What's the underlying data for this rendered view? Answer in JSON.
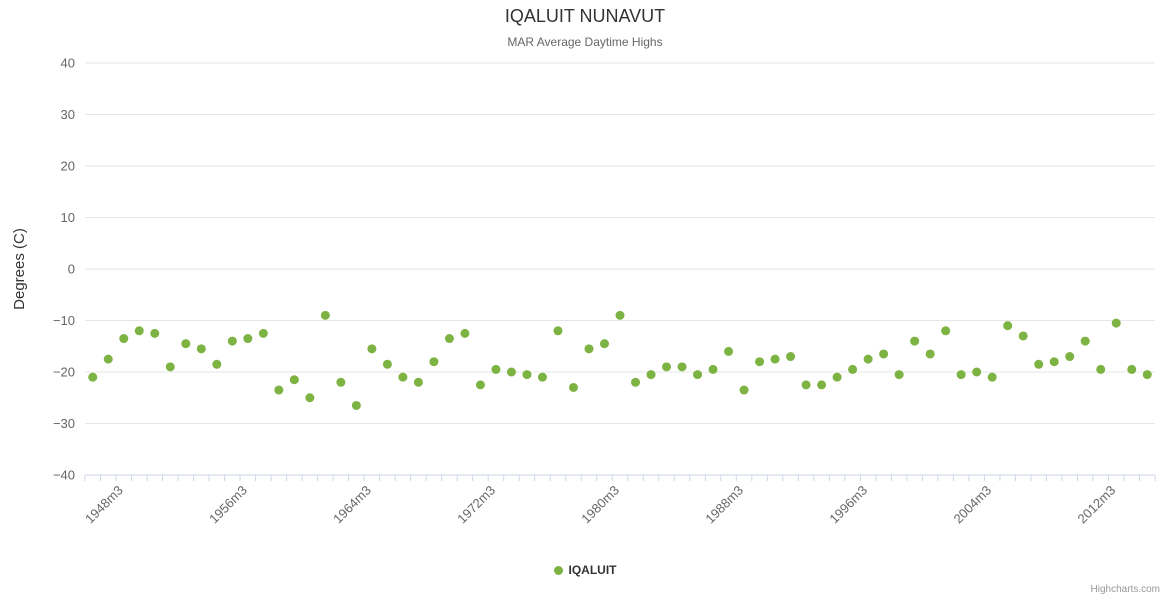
{
  "title": "IQALUIT NUNAVUT",
  "subtitle": "MAR Average Daytime Highs",
  "y_axis_title": "Degrees (C)",
  "legend": {
    "label": "IQALUIT"
  },
  "credits": "Highcharts.com",
  "colors": {
    "point": "#7cb342",
    "grid": "#e6e6e6",
    "axis_line": "#ccd6eb",
    "tick": "#ccd6eb",
    "tick_label": "#666666",
    "title": "#333333"
  },
  "chart_data": {
    "type": "scatter",
    "title": "IQALUIT NUNAVUT",
    "subtitle": "MAR Average Daytime Highs",
    "ylabel": "Degrees (C)",
    "ylim": [
      -40,
      40
    ],
    "y_ticks": [
      40,
      30,
      20,
      10,
      0,
      -10,
      -20,
      -30,
      -40
    ],
    "grid": true,
    "legend_position": "bottom-center",
    "x_tick_labels": [
      "1948m3",
      "1956m3",
      "1964m3",
      "1972m3",
      "1980m3",
      "1988m3",
      "1996m3",
      "2004m3",
      "2012m3"
    ],
    "x_tick_interval": 8,
    "series": [
      {
        "name": "IQALUIT",
        "color": "#7cb342",
        "start_year": 1946,
        "month_suffix": "m3",
        "values": [
          -21,
          -17.5,
          -13.5,
          -12,
          -12.5,
          -19,
          -14.5,
          -15.5,
          -18.5,
          -14,
          -13.5,
          -12.5,
          -23.5,
          -21.5,
          -25,
          -9,
          -22,
          -26.5,
          -15.5,
          -18.5,
          -21,
          -22,
          -18,
          -13.5,
          -12.5,
          -22.5,
          -19.5,
          -20,
          -20.5,
          -21,
          -12,
          -23,
          -15.5,
          -14.5,
          -9,
          -22,
          -20.5,
          -19,
          -19,
          -20.5,
          -19.5,
          -16,
          -23.5,
          -18,
          -17.5,
          -17,
          -22.5,
          -22.5,
          -21,
          -19.5,
          -17.5,
          -16.5,
          -20.5,
          -14,
          -16.5,
          -12,
          -20.5,
          -20,
          -21,
          -11,
          -13,
          -18.5,
          -18,
          -17,
          -14,
          -19.5,
          -10.5,
          -19.5,
          -20.5
        ]
      }
    ]
  }
}
